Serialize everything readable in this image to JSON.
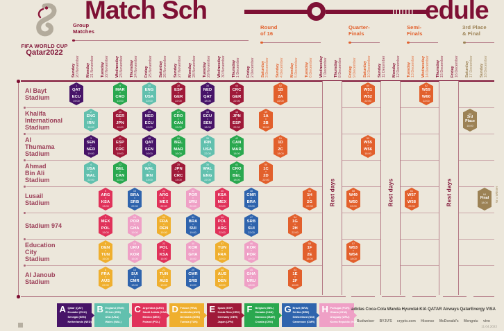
{
  "title": {
    "part1": "Match Sch",
    "part2": "edule"
  },
  "logo": {
    "line1": "FIFA WORLD CUP",
    "line2": "Qatar2022"
  },
  "colors": {
    "background": "#ece7db",
    "maroon": "#8A1538",
    "title": "#7e1034",
    "stadium_label": "#9c4059",
    "knockout": "#e2602c",
    "finals": "#9c8255",
    "A": "#471468",
    "B": "#62c0ae",
    "C": "#e0325a",
    "D": "#efaf2e",
    "E": "#9f1a39",
    "F": "#2aa84f",
    "G": "#2f64ad",
    "H": "#efa0c6"
  },
  "sections": [
    {
      "id": "group-matches",
      "lines": [
        "Group",
        "Matches"
      ],
      "color": "#8A1538"
    },
    {
      "id": "round-of-16",
      "lines": [
        "Round",
        "of 16"
      ],
      "color": "#e2602c"
    },
    {
      "id": "quarter-finals",
      "lines": [
        "Quarter-",
        "Finals"
      ],
      "color": "#e2602c"
    },
    {
      "id": "semi-finals",
      "lines": [
        "Semi-",
        "Finals"
      ],
      "color": "#e2602c"
    },
    {
      "id": "third-place-final",
      "lines": [
        "3rd Place",
        "& Final"
      ],
      "color": "#9c8255"
    }
  ],
  "dates": [
    {
      "day": "Sunday",
      "date": "20 November",
      "phase": "group"
    },
    {
      "day": "Monday",
      "date": "21 November",
      "phase": "group"
    },
    {
      "day": "Tuesday",
      "date": "22 November",
      "phase": "group"
    },
    {
      "day": "Wednesday",
      "date": "23 November",
      "phase": "group"
    },
    {
      "day": "Thursday",
      "date": "24 November",
      "phase": "group"
    },
    {
      "day": "Friday",
      "date": "25 November",
      "phase": "group"
    },
    {
      "day": "Saturday",
      "date": "26 November",
      "phase": "group"
    },
    {
      "day": "Sunday",
      "date": "27 November",
      "phase": "group"
    },
    {
      "day": "Monday",
      "date": "28 November",
      "phase": "group"
    },
    {
      "day": "Tuesday",
      "date": "29 November",
      "phase": "group"
    },
    {
      "day": "Wednesday",
      "date": "30 November",
      "phase": "group"
    },
    {
      "day": "Thursday",
      "date": "1 December",
      "phase": "group"
    },
    {
      "day": "Friday",
      "date": "2 December",
      "phase": "group"
    },
    {
      "day": "Saturday",
      "date": "3 December",
      "phase": "ko"
    },
    {
      "day": "Sunday",
      "date": "4 December",
      "phase": "ko"
    },
    {
      "day": "Monday",
      "date": "5 December",
      "phase": "ko"
    },
    {
      "day": "Tuesday",
      "date": "6 December",
      "phase": "ko"
    },
    {
      "day": "Wednesday",
      "date": "7 December",
      "phase": "rest"
    },
    {
      "day": "Thursday",
      "date": "8 December",
      "phase": "rest"
    },
    {
      "day": "Friday",
      "date": "9 December",
      "phase": "ko"
    },
    {
      "day": "Saturday",
      "date": "10 December",
      "phase": "ko"
    },
    {
      "day": "Sunday",
      "date": "11 December",
      "phase": "rest"
    },
    {
      "day": "Monday",
      "date": "12 December",
      "phase": "rest"
    },
    {
      "day": "Tuesday",
      "date": "13 December",
      "phase": "ko"
    },
    {
      "day": "Wednesday",
      "date": "14 December",
      "phase": "ko"
    },
    {
      "day": "Thursday",
      "date": "15 December",
      "phase": "rest"
    },
    {
      "day": "Friday",
      "date": "16 December",
      "phase": "rest"
    },
    {
      "day": "Saturday",
      "date": "17 December",
      "phase": "finals"
    },
    {
      "day": "Sunday",
      "date": "18 December",
      "phase": "finals"
    }
  ],
  "stadiums": [
    [
      "Al Bayt",
      "Stadium"
    ],
    [
      "Khalifa",
      "International",
      "Stadium"
    ],
    [
      "Al",
      "Thumama",
      "Stadium"
    ],
    [
      "Ahmad",
      "Bin Ali",
      "Stadium"
    ],
    [
      "Lusail",
      "Stadium"
    ],
    [
      "Stadium 974"
    ],
    [
      "Education",
      "City",
      "Stadium"
    ],
    [
      "Al Janoub",
      "Stadium"
    ]
  ],
  "vs_label": "v",
  "rest_days_label": "Rest days",
  "winner_note": "W = Winner",
  "matches": [
    {
      "stadium": 0,
      "col": 0,
      "num": "1",
      "home": "QAT",
      "away": "ECU",
      "time": "19:00",
      "group": "A"
    },
    {
      "stadium": 0,
      "col": 3,
      "num": "9",
      "home": "MAR",
      "away": "CRO",
      "time": "13:00",
      "group": "F"
    },
    {
      "stadium": 0,
      "col": 5,
      "num": "20",
      "home": "ENG",
      "away": "USA",
      "time": "22:00",
      "group": "B"
    },
    {
      "stadium": 0,
      "col": 7,
      "num": "28",
      "home": "ESP",
      "away": "GER",
      "time": "22:00",
      "group": "E"
    },
    {
      "stadium": 0,
      "col": 9,
      "num": "34",
      "home": "NED",
      "away": "QAT",
      "time": "18:00",
      "group": "A"
    },
    {
      "stadium": 0,
      "col": 11,
      "num": "44",
      "home": "CRC",
      "away": "GER",
      "time": "22:00",
      "group": "E"
    },
    {
      "stadium": 0,
      "col": 14,
      "num": "52",
      "home": "1B",
      "away": "2A",
      "time": "22:00",
      "group": "ko"
    },
    {
      "stadium": 0,
      "col": 20,
      "num": "60",
      "home": "W51",
      "away": "W52",
      "time": "22:00",
      "group": "ko"
    },
    {
      "stadium": 0,
      "col": 24,
      "num": "62",
      "home": "W59",
      "away": "W60",
      "time": "22:00",
      "group": "ko"
    },
    {
      "stadium": 1,
      "col": 1,
      "num": "2",
      "home": "ENG",
      "away": "IRN",
      "time": "16:00",
      "group": "B"
    },
    {
      "stadium": 1,
      "col": 3,
      "num": "10",
      "home": "GER",
      "away": "JPN",
      "time": "16:00",
      "group": "E"
    },
    {
      "stadium": 1,
      "col": 5,
      "num": "19",
      "home": "NED",
      "away": "ECU",
      "time": "19:00",
      "group": "A"
    },
    {
      "stadium": 1,
      "col": 7,
      "num": "27",
      "home": "CRO",
      "away": "CAN",
      "time": "19:00",
      "group": "F"
    },
    {
      "stadium": 1,
      "col": 9,
      "num": "33",
      "home": "ECU",
      "away": "SEN",
      "time": "18:00",
      "group": "A"
    },
    {
      "stadium": 1,
      "col": 11,
      "num": "43",
      "home": "JPN",
      "away": "ESP",
      "time": "22:00",
      "group": "E"
    },
    {
      "stadium": 1,
      "col": 13,
      "num": "49",
      "home": "1A",
      "away": "2B",
      "time": "18:00",
      "group": "ko"
    },
    {
      "stadium": 1,
      "col": 27,
      "num": "63",
      "lines": [
        "3rd",
        "Place"
      ],
      "time": "18:00",
      "group": "fin"
    },
    {
      "stadium": 2,
      "col": 1,
      "num": "3",
      "home": "SEN",
      "away": "NED",
      "time": "19:00",
      "group": "A"
    },
    {
      "stadium": 2,
      "col": 3,
      "num": "11",
      "home": "ESP",
      "away": "CRC",
      "time": "19:00",
      "group": "E"
    },
    {
      "stadium": 2,
      "col": 5,
      "num": "18",
      "home": "QAT",
      "away": "SEN",
      "time": "16:00",
      "group": "A"
    },
    {
      "stadium": 2,
      "col": 7,
      "num": "26",
      "home": "BEL",
      "away": "MAR",
      "time": "16:00",
      "group": "F"
    },
    {
      "stadium": 2,
      "col": 9,
      "num": "35",
      "home": "IRN",
      "away": "USA",
      "time": "22:00",
      "group": "B"
    },
    {
      "stadium": 2,
      "col": 11,
      "num": "42",
      "home": "CAN",
      "away": "MAR",
      "time": "18:00",
      "group": "F"
    },
    {
      "stadium": 2,
      "col": 14,
      "num": "51",
      "home": "1D",
      "away": "2C",
      "time": "18:00",
      "group": "ko"
    },
    {
      "stadium": 2,
      "col": 20,
      "num": "59",
      "home": "W55",
      "away": "W56",
      "time": "18:00",
      "group": "ko"
    },
    {
      "stadium": 3,
      "col": 1,
      "num": "4",
      "home": "USA",
      "away": "WAL",
      "time": "22:00",
      "group": "B"
    },
    {
      "stadium": 3,
      "col": 3,
      "num": "12",
      "home": "BEL",
      "away": "CAN",
      "time": "22:00",
      "group": "F"
    },
    {
      "stadium": 3,
      "col": 5,
      "num": "17",
      "home": "WAL",
      "away": "IRN",
      "time": "13:00",
      "group": "B"
    },
    {
      "stadium": 3,
      "col": 7,
      "num": "25",
      "home": "JPN",
      "away": "CRC",
      "time": "13:00",
      "group": "E"
    },
    {
      "stadium": 3,
      "col": 9,
      "num": "36",
      "home": "WAL",
      "away": "ENG",
      "time": "22:00",
      "group": "B"
    },
    {
      "stadium": 3,
      "col": 11,
      "num": "41",
      "home": "CRO",
      "away": "BEL",
      "time": "18:00",
      "group": "F"
    },
    {
      "stadium": 3,
      "col": 13,
      "num": "50",
      "home": "1C",
      "away": "2D",
      "time": "22:00",
      "group": "ko"
    },
    {
      "stadium": 4,
      "col": 2,
      "num": "5",
      "home": "ARG",
      "away": "KSA",
      "time": "13:00",
      "group": "C"
    },
    {
      "stadium": 4,
      "col": 4,
      "num": "16",
      "home": "BRA",
      "away": "SRB",
      "time": "22:00",
      "group": "G"
    },
    {
      "stadium": 4,
      "col": 6,
      "num": "24",
      "home": "ARG",
      "away": "MEX",
      "time": "22:00",
      "group": "C"
    },
    {
      "stadium": 4,
      "col": 8,
      "num": "32",
      "home": "POR",
      "away": "URU",
      "time": "22:00",
      "group": "H"
    },
    {
      "stadium": 4,
      "col": 10,
      "num": "40",
      "home": "KSA",
      "away": "MEX",
      "time": "22:00",
      "group": "C"
    },
    {
      "stadium": 4,
      "col": 12,
      "num": "48",
      "home": "CMR",
      "away": "BRA",
      "time": "22:00",
      "group": "G"
    },
    {
      "stadium": 4,
      "col": 16,
      "num": "56",
      "home": "1H",
      "away": "2G",
      "time": "22:00",
      "group": "ko"
    },
    {
      "stadium": 4,
      "col": 19,
      "num": "58",
      "home": "W49",
      "away": "W50",
      "time": "22:00",
      "group": "ko"
    },
    {
      "stadium": 4,
      "col": 23,
      "num": "61",
      "home": "W57",
      "away": "W58",
      "time": "22:00",
      "group": "ko"
    },
    {
      "stadium": 4,
      "col": 28,
      "num": "64",
      "lines": [
        "Final"
      ],
      "time": "18:00",
      "group": "fin"
    },
    {
      "stadium": 5,
      "col": 2,
      "num": "7",
      "home": "MEX",
      "away": "POL",
      "time": "19:00",
      "group": "C"
    },
    {
      "stadium": 5,
      "col": 4,
      "num": "15",
      "home": "POR",
      "away": "GHA",
      "time": "19:00",
      "group": "H"
    },
    {
      "stadium": 5,
      "col": 6,
      "num": "23",
      "home": "FRA",
      "away": "DEN",
      "time": "19:00",
      "group": "D"
    },
    {
      "stadium": 5,
      "col": 8,
      "num": "31",
      "home": "BRA",
      "away": "SUI",
      "time": "19:00",
      "group": "G"
    },
    {
      "stadium": 5,
      "col": 10,
      "num": "39",
      "home": "POL",
      "away": "ARG",
      "time": "22:00",
      "group": "C"
    },
    {
      "stadium": 5,
      "col": 12,
      "num": "47",
      "home": "SRB",
      "away": "SUI",
      "time": "22:00",
      "group": "G"
    },
    {
      "stadium": 5,
      "col": 15,
      "num": "54",
      "home": "1G",
      "away": "2H",
      "time": "22:00",
      "group": "ko"
    },
    {
      "stadium": 6,
      "col": 2,
      "num": "6",
      "home": "DEN",
      "away": "TUN",
      "time": "16:00",
      "group": "D"
    },
    {
      "stadium": 6,
      "col": 4,
      "num": "14",
      "home": "URU",
      "away": "KOR",
      "time": "16:00",
      "group": "H"
    },
    {
      "stadium": 6,
      "col": 6,
      "num": "22",
      "home": "POL",
      "away": "KSA",
      "time": "16:00",
      "group": "C"
    },
    {
      "stadium": 6,
      "col": 8,
      "num": "30",
      "home": "KOR",
      "away": "GHA",
      "time": "16:00",
      "group": "H"
    },
    {
      "stadium": 6,
      "col": 10,
      "num": "37",
      "home": "TUN",
      "away": "FRA",
      "time": "18:00",
      "group": "D"
    },
    {
      "stadium": 6,
      "col": 12,
      "num": "46",
      "home": "KOR",
      "away": "POR",
      "time": "18:00",
      "group": "H"
    },
    {
      "stadium": 6,
      "col": 16,
      "num": "55",
      "home": "1F",
      "away": "2E",
      "time": "18:00",
      "group": "ko"
    },
    {
      "stadium": 6,
      "col": 19,
      "num": "57",
      "home": "W53",
      "away": "W54",
      "time": "18:00",
      "group": "ko"
    },
    {
      "stadium": 7,
      "col": 2,
      "num": "8",
      "home": "FRA",
      "away": "AUS",
      "time": "22:00",
      "group": "D"
    },
    {
      "stadium": 7,
      "col": 4,
      "num": "13",
      "home": "SUI",
      "away": "CMR",
      "time": "13:00",
      "group": "G"
    },
    {
      "stadium": 7,
      "col": 6,
      "num": "21",
      "home": "TUN",
      "away": "AUS",
      "time": "13:00",
      "group": "D"
    },
    {
      "stadium": 7,
      "col": 8,
      "num": "29",
      "home": "CMR",
      "away": "SRB",
      "time": "13:00",
      "group": "G"
    },
    {
      "stadium": 7,
      "col": 10,
      "num": "38",
      "home": "AUS",
      "away": "DEN",
      "time": "18:00",
      "group": "D"
    },
    {
      "stadium": 7,
      "col": 12,
      "num": "45",
      "home": "GHA",
      "away": "URU",
      "time": "18:00",
      "group": "H"
    },
    {
      "stadium": 7,
      "col": 15,
      "num": "53",
      "home": "1E",
      "away": "2F",
      "time": "18:00",
      "group": "ko"
    }
  ],
  "legend": [
    {
      "letter": "A",
      "color": "#471468",
      "teams": [
        "Qatar (QAT)",
        "Ecuador (ECU)",
        "Senegal (SEN)",
        "Netherlands (NED)"
      ]
    },
    {
      "letter": "B",
      "color": "#62c0ae",
      "teams": [
        "England (ENG)",
        "IR Iran (IRN)",
        "USA (USA)",
        "Wales (WAL)"
      ]
    },
    {
      "letter": "C",
      "color": "#e0325a",
      "teams": [
        "Argentina (ARG)",
        "Saudi Arabia (KSA)",
        "Mexico (MEX)",
        "Poland (POL)"
      ]
    },
    {
      "letter": "D",
      "color": "#efaf2e",
      "teams": [
        "France (FRA)",
        "Australia (AUS)",
        "Denmark (DEN)",
        "Tunisia (TUN)"
      ]
    },
    {
      "letter": "E",
      "color": "#9f1a39",
      "teams": [
        "Spain (ESP)",
        "Costa Rica (CRC)",
        "Germany (GER)",
        "Japan (JPN)"
      ]
    },
    {
      "letter": "F",
      "color": "#2aa84f",
      "teams": [
        "Belgium (BEL)",
        "Canada (CAN)",
        "Morocco (MAR)",
        "Croatia (CRO)"
      ]
    },
    {
      "letter": "G",
      "color": "#2f64ad",
      "teams": [
        "Brazil (BRA)",
        "Serbia (SRB)",
        "Switzerland (SUI)",
        "Cameroon (CMR)"
      ]
    },
    {
      "letter": "H",
      "color": "#efa0c6",
      "teams": [
        "Portugal (POR)",
        "Ghana (GHA)",
        "Uruguay (URU)",
        "Korea Republic (KOR)"
      ]
    }
  ],
  "sponsors": {
    "row1": [
      "adidas",
      "Coca-Cola",
      "Wanda",
      "Hyundai-KIA",
      "QATAR Airways",
      "QatarEnergy",
      "VISA"
    ],
    "row2": [
      "Budweiser",
      "BYJU'S",
      "crypto.com",
      "Hisense",
      "McDonald's",
      "Mengniu",
      "vivo"
    ]
  },
  "footnote": "11.04.2022"
}
